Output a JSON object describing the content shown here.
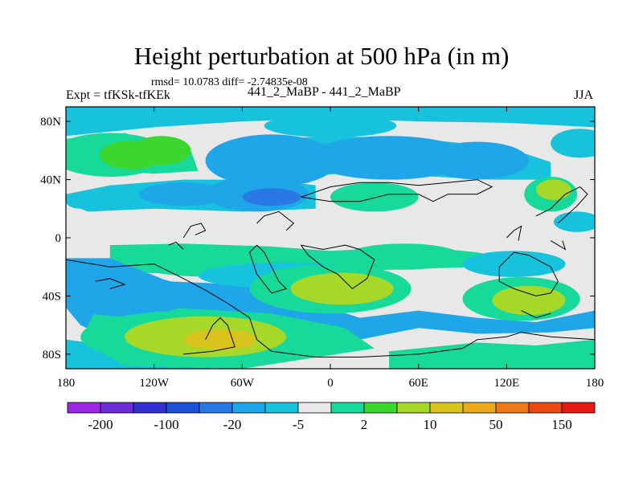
{
  "chart_data": {
    "type": "contour-map",
    "title": "Height perturbation at 500 hPa (in m)",
    "stats": "rmsd= 10.0783  diff= -2.74835e-08",
    "left_label": "Expt = tfKSk-tfKEk",
    "center_label": "441_2_MaBP - 441_2_MaBP",
    "right_label": "JJA",
    "x_ticks": [
      "180",
      "120W",
      "60W",
      "0",
      "60E",
      "120E",
      "180"
    ],
    "x_values": [
      -180,
      -120,
      -60,
      0,
      60,
      120,
      180
    ],
    "y_ticks": [
      "80N",
      "40N",
      "0",
      "40S",
      "80S"
    ],
    "y_values": [
      80,
      40,
      0,
      -40,
      -80
    ],
    "xlim": [
      -180,
      180
    ],
    "ylim": [
      -90,
      90
    ],
    "colorbar": {
      "colors": [
        "#9b27e3",
        "#6a2cd6",
        "#2f2fd2",
        "#1e4fd7",
        "#2a78e6",
        "#1ea6e8",
        "#17c2dd",
        "#e8e8e8",
        "#17d99a",
        "#3bd62e",
        "#a6d82a",
        "#d9c41e",
        "#ebab1a",
        "#ee7a17",
        "#ec4a14",
        "#e41a12"
      ],
      "tick_labels": [
        "-200",
        "-100",
        "-20",
        "-5",
        "2",
        "10",
        "50",
        "150"
      ]
    },
    "regions": [
      {
        "lon": -150,
        "lat": 57,
        "a": 40,
        "b": 15,
        "level": 1
      },
      {
        "lon": -135,
        "lat": 57,
        "a": 22,
        "b": 10,
        "level": 2
      },
      {
        "lon": -115,
        "lat": 60,
        "a": 20,
        "b": 10,
        "level": 2
      },
      {
        "lon": -40,
        "lat": 53,
        "a": 45,
        "b": 18,
        "level": -2
      },
      {
        "lon": 40,
        "lat": 55,
        "a": 55,
        "b": 15,
        "level": -2
      },
      {
        "lon": 100,
        "lat": 53,
        "a": 35,
        "b": 13,
        "level": -2
      },
      {
        "lon": 0,
        "lat": 77,
        "a": 45,
        "b": 8,
        "level": -1
      },
      {
        "lon": 170,
        "lat": 65,
        "a": 20,
        "b": 10,
        "level": -1
      },
      {
        "lon": -165,
        "lat": 79,
        "a": 16,
        "b": 5,
        "level": -1
      },
      {
        "lon": -100,
        "lat": 30,
        "a": 30,
        "b": 8,
        "level": -2
      },
      {
        "lon": -50,
        "lat": 30,
        "a": 35,
        "b": 12,
        "level": -2
      },
      {
        "lon": -40,
        "lat": 28,
        "a": 20,
        "b": 6,
        "level": -3
      },
      {
        "lon": 30,
        "lat": 28,
        "a": 30,
        "b": 10,
        "level": 1
      },
      {
        "lon": 150,
        "lat": 30,
        "a": 18,
        "b": 12,
        "level": 1
      },
      {
        "lon": 152,
        "lat": 33,
        "a": 12,
        "b": 7,
        "level": 3
      },
      {
        "lon": 168,
        "lat": 11,
        "a": 16,
        "b": 7,
        "level": -1
      },
      {
        "lon": -170,
        "lat": 25,
        "a": 10,
        "b": 5,
        "level": -1
      },
      {
        "lon": -75,
        "lat": -18,
        "a": 60,
        "b": 9,
        "level": 1
      },
      {
        "lon": 50,
        "lat": -13,
        "a": 40,
        "b": 9,
        "level": 1
      },
      {
        "lon": -140,
        "lat": -40,
        "a": 45,
        "b": 14,
        "level": -2
      },
      {
        "lon": -30,
        "lat": -26,
        "a": 60,
        "b": 9,
        "level": -1
      },
      {
        "lon": 125,
        "lat": -18,
        "a": 35,
        "b": 9,
        "level": -1
      },
      {
        "lon": 0,
        "lat": -35,
        "a": 55,
        "b": 17,
        "level": 1
      },
      {
        "lon": 8,
        "lat": -35,
        "a": 35,
        "b": 11,
        "level": 3
      },
      {
        "lon": 130,
        "lat": -42,
        "a": 40,
        "b": 15,
        "level": 1
      },
      {
        "lon": 135,
        "lat": -43,
        "a": 25,
        "b": 10,
        "level": 3
      },
      {
        "lon": -95,
        "lat": -68,
        "a": 75,
        "b": 18,
        "level": 1
      },
      {
        "lon": -85,
        "lat": -68,
        "a": 55,
        "b": 14,
        "level": 3
      },
      {
        "lon": -75,
        "lat": -70,
        "a": 25,
        "b": 7,
        "level": 4
      }
    ]
  }
}
